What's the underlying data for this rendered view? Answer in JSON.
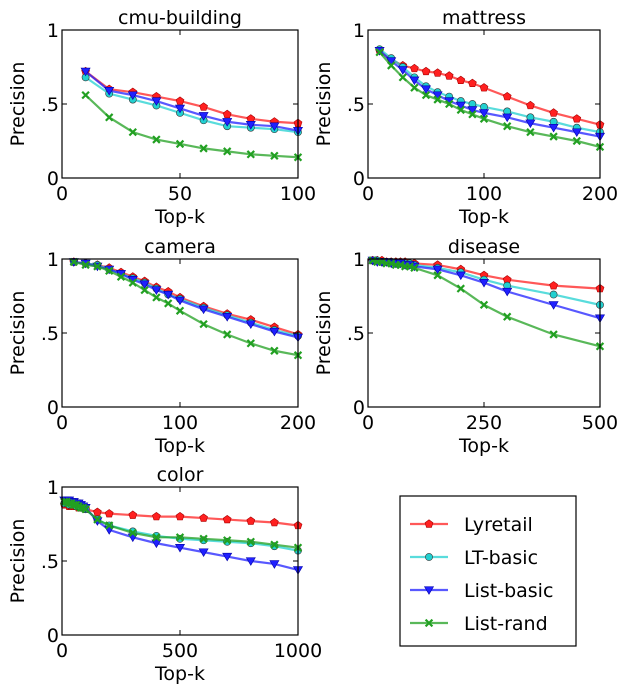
{
  "legend": {
    "placement": "bottom-right",
    "entries": [
      {
        "name": "Lyretail",
        "color": "#ff2020",
        "marker": "pentagon"
      },
      {
        "name": "LT-basic",
        "color": "#22d0d0",
        "marker": "circle"
      },
      {
        "name": "List-basic",
        "color": "#2020ff",
        "marker": "triangle-down"
      },
      {
        "name": "List-rand",
        "color": "#22a022",
        "marker": "x"
      }
    ]
  },
  "chart_data": [
    {
      "type": "line",
      "title": "cmu-building",
      "xlabel": "Top-k",
      "ylabel": "Precision",
      "xlim": [
        0,
        100
      ],
      "ylim": [
        0,
        1
      ],
      "xticks": [
        0,
        50,
        100
      ],
      "xtick_labels": [
        "0",
        "50",
        "100"
      ],
      "yticks": [
        0,
        0.5,
        1
      ],
      "ytick_labels": [
        "0",
        ".5",
        "1"
      ],
      "grid": false,
      "x": [
        10,
        20,
        30,
        40,
        50,
        60,
        70,
        80,
        90,
        100
      ],
      "series": [
        {
          "name": "Lyretail",
          "values": [
            0.72,
            0.6,
            0.58,
            0.55,
            0.52,
            0.48,
            0.43,
            0.4,
            0.38,
            0.37
          ]
        },
        {
          "name": "LT-basic",
          "values": [
            0.68,
            0.57,
            0.53,
            0.49,
            0.44,
            0.39,
            0.35,
            0.34,
            0.33,
            0.31
          ]
        },
        {
          "name": "List-basic",
          "values": [
            0.72,
            0.59,
            0.56,
            0.52,
            0.47,
            0.42,
            0.38,
            0.36,
            0.35,
            0.32
          ]
        },
        {
          "name": "List-rand",
          "values": [
            0.56,
            0.41,
            0.31,
            0.26,
            0.23,
            0.2,
            0.18,
            0.16,
            0.15,
            0.14
          ]
        }
      ]
    },
    {
      "type": "line",
      "title": "mattress",
      "xlabel": "Top-k",
      "ylabel": "Precision",
      "xlim": [
        0,
        200
      ],
      "ylim": [
        0,
        1
      ],
      "xticks": [
        0,
        100,
        200
      ],
      "xtick_labels": [
        "0",
        "100",
        "200"
      ],
      "yticks": [
        0,
        0.5,
        1
      ],
      "ytick_labels": [
        "0",
        ".5",
        "1"
      ],
      "grid": false,
      "x": [
        10,
        20,
        30,
        40,
        50,
        60,
        70,
        80,
        90,
        100,
        120,
        140,
        160,
        180,
        200
      ],
      "series": [
        {
          "name": "Lyretail",
          "values": [
            0.86,
            0.8,
            0.76,
            0.74,
            0.72,
            0.71,
            0.69,
            0.66,
            0.64,
            0.61,
            0.55,
            0.49,
            0.44,
            0.4,
            0.36
          ]
        },
        {
          "name": "LT-basic",
          "values": [
            0.87,
            0.81,
            0.75,
            0.68,
            0.62,
            0.58,
            0.55,
            0.52,
            0.5,
            0.48,
            0.45,
            0.41,
            0.38,
            0.34,
            0.31
          ]
        },
        {
          "name": "List-basic",
          "values": [
            0.86,
            0.79,
            0.73,
            0.66,
            0.6,
            0.56,
            0.52,
            0.49,
            0.46,
            0.44,
            0.41,
            0.37,
            0.34,
            0.31,
            0.28
          ]
        },
        {
          "name": "List-rand",
          "values": [
            0.85,
            0.76,
            0.68,
            0.61,
            0.56,
            0.53,
            0.5,
            0.46,
            0.43,
            0.4,
            0.35,
            0.31,
            0.28,
            0.25,
            0.21
          ]
        }
      ]
    },
    {
      "type": "line",
      "title": "camera",
      "xlabel": "Top-k",
      "ylabel": "Precision",
      "xlim": [
        0,
        200
      ],
      "ylim": [
        0,
        1
      ],
      "xticks": [
        0,
        100,
        200
      ],
      "xtick_labels": [
        "0",
        "100",
        "200"
      ],
      "yticks": [
        0,
        0.5,
        1
      ],
      "ytick_labels": [
        "0",
        ".5",
        "1"
      ],
      "grid": false,
      "x": [
        10,
        20,
        30,
        40,
        50,
        60,
        70,
        80,
        90,
        100,
        120,
        140,
        160,
        180,
        200
      ],
      "series": [
        {
          "name": "Lyretail",
          "values": [
            0.98,
            0.97,
            0.96,
            0.94,
            0.91,
            0.88,
            0.85,
            0.81,
            0.78,
            0.74,
            0.68,
            0.63,
            0.59,
            0.54,
            0.49
          ]
        },
        {
          "name": "LT-basic",
          "values": [
            0.98,
            0.97,
            0.96,
            0.93,
            0.9,
            0.87,
            0.84,
            0.8,
            0.76,
            0.73,
            0.67,
            0.62,
            0.57,
            0.52,
            0.48
          ]
        },
        {
          "name": "List-basic",
          "values": [
            0.98,
            0.97,
            0.95,
            0.93,
            0.9,
            0.86,
            0.83,
            0.79,
            0.76,
            0.72,
            0.66,
            0.61,
            0.56,
            0.51,
            0.47
          ]
        },
        {
          "name": "List-rand",
          "values": [
            0.98,
            0.96,
            0.95,
            0.92,
            0.88,
            0.84,
            0.79,
            0.74,
            0.7,
            0.65,
            0.56,
            0.49,
            0.43,
            0.38,
            0.35
          ]
        }
      ]
    },
    {
      "type": "line",
      "title": "disease",
      "xlabel": "Top-k",
      "ylabel": "Precision",
      "xlim": [
        0,
        500
      ],
      "ylim": [
        0,
        1
      ],
      "xticks": [
        0,
        250,
        500
      ],
      "xtick_labels": [
        "0",
        "250",
        "500"
      ],
      "yticks": [
        0,
        0.5,
        1
      ],
      "ytick_labels": [
        "0",
        ".5",
        "1"
      ],
      "grid": false,
      "x": [
        10,
        20,
        30,
        40,
        50,
        60,
        70,
        80,
        90,
        100,
        150,
        200,
        250,
        300,
        400,
        500
      ],
      "series": [
        {
          "name": "Lyretail",
          "values": [
            0.99,
            0.99,
            0.99,
            0.98,
            0.98,
            0.98,
            0.98,
            0.98,
            0.97,
            0.97,
            0.96,
            0.93,
            0.89,
            0.86,
            0.82,
            0.8
          ]
        },
        {
          "name": "LT-basic",
          "values": [
            0.99,
            0.99,
            0.98,
            0.98,
            0.98,
            0.97,
            0.97,
            0.97,
            0.97,
            0.96,
            0.94,
            0.91,
            0.86,
            0.82,
            0.76,
            0.69
          ]
        },
        {
          "name": "List-basic",
          "values": [
            0.99,
            0.98,
            0.98,
            0.98,
            0.97,
            0.97,
            0.97,
            0.96,
            0.96,
            0.95,
            0.93,
            0.89,
            0.84,
            0.78,
            0.69,
            0.6
          ]
        },
        {
          "name": "List-rand",
          "values": [
            0.99,
            0.98,
            0.98,
            0.97,
            0.97,
            0.96,
            0.96,
            0.95,
            0.95,
            0.94,
            0.89,
            0.8,
            0.69,
            0.61,
            0.49,
            0.41
          ]
        }
      ]
    },
    {
      "type": "line",
      "title": "color",
      "xlabel": "Top-k",
      "ylabel": "Precision",
      "xlim": [
        0,
        1000
      ],
      "ylim": [
        0,
        1
      ],
      "xticks": [
        0,
        500,
        1000
      ],
      "xtick_labels": [
        "0",
        "500",
        "1000"
      ],
      "yticks": [
        0,
        0.5,
        1
      ],
      "ytick_labels": [
        "0",
        ".5",
        "1"
      ],
      "grid": false,
      "x": [
        10,
        20,
        30,
        40,
        50,
        60,
        70,
        80,
        90,
        100,
        150,
        200,
        300,
        400,
        500,
        600,
        700,
        800,
        900,
        1000
      ],
      "series": [
        {
          "name": "Lyretail",
          "values": [
            0.88,
            0.88,
            0.87,
            0.87,
            0.87,
            0.87,
            0.86,
            0.86,
            0.86,
            0.85,
            0.83,
            0.82,
            0.81,
            0.8,
            0.8,
            0.79,
            0.78,
            0.77,
            0.76,
            0.74
          ]
        },
        {
          "name": "LT-basic",
          "values": [
            0.89,
            0.89,
            0.88,
            0.88,
            0.88,
            0.87,
            0.87,
            0.86,
            0.86,
            0.85,
            0.78,
            0.74,
            0.7,
            0.67,
            0.65,
            0.64,
            0.63,
            0.62,
            0.6,
            0.57
          ]
        },
        {
          "name": "List-basic",
          "values": [
            0.91,
            0.91,
            0.91,
            0.9,
            0.9,
            0.89,
            0.89,
            0.88,
            0.87,
            0.86,
            0.77,
            0.71,
            0.66,
            0.62,
            0.59,
            0.56,
            0.53,
            0.5,
            0.48,
            0.44
          ]
        },
        {
          "name": "List-rand",
          "values": [
            0.9,
            0.9,
            0.89,
            0.89,
            0.88,
            0.88,
            0.87,
            0.86,
            0.86,
            0.85,
            0.78,
            0.74,
            0.69,
            0.66,
            0.66,
            0.65,
            0.64,
            0.63,
            0.61,
            0.59
          ]
        }
      ]
    }
  ]
}
